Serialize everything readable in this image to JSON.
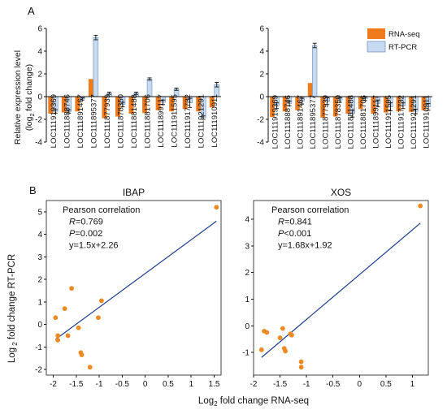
{
  "panel_labels": {
    "a": "A",
    "b": "B"
  },
  "colors": {
    "rna": "#f07b1c",
    "rtpcr": "#c6daf2",
    "rtpcr_edge": "#6e8cb0",
    "fit": "#1e3f8a",
    "point": "#ee8a23"
  },
  "legend": {
    "rna": "RNA-seq",
    "rtpcr": "RT-PCR"
  },
  "bar_ylabel_line1": "Relative expression level",
  "bar_ylabel_line2": "(log",
  "bar_ylabel_sub": "2",
  "bar_ylabel_line2_end": " fold change)",
  "scatter_ylabel_main": "Log",
  "scatter_ylabel_sub": " 2",
  "scatter_ylabel_end": " fold change RT-PCR",
  "scatter_xlabel_main": "Log",
  "scatter_xlabel_sub": "2",
  "scatter_xlabel_end": " fold change RNA-seq",
  "chart_data": [
    {
      "type": "bar",
      "ylim": [
        -4,
        6
      ],
      "yticks": [
        6,
        4,
        2,
        0,
        -2,
        -4
      ],
      "categories": [
        "LOC111919369",
        "LOC111888746",
        "LOC111891467",
        "LOC111895377",
        "LOC111877939",
        "LOC111878350",
        "LOC111881488",
        "LOC111881706",
        "LOC111899117",
        "LOC111911595",
        "LOC111917732",
        "LOC111921291",
        "LOC111910911"
      ],
      "series": [
        {
          "name": "RNA-seq",
          "values": [
            -1.5,
            -1.4,
            -1.3,
            1.55,
            -1.9,
            -1.75,
            -1.5,
            -1.45,
            -1.2,
            -1.3,
            -1.1,
            -1.3,
            -0.95
          ]
        },
        {
          "name": "RT-PCR",
          "values": [
            -1.3,
            -1.3,
            -0.2,
            5.2,
            0.3,
            -0.7,
            0.3,
            1.55,
            -0.5,
            0.65,
            -0.55,
            -1.85,
            1.05
          ]
        }
      ],
      "errors": {
        "RT-PCR": [
          0.15,
          0.15,
          0.1,
          0.2,
          0.1,
          0.2,
          0.1,
          0.1,
          0.2,
          0.1,
          0.4,
          0.15,
          0.2
        ]
      }
    },
    {
      "type": "bar",
      "ylim": [
        -4,
        6
      ],
      "yticks": [
        6,
        4,
        2,
        0,
        -2,
        -4
      ],
      "categories": [
        "LOC111919369",
        "LOC111888746",
        "LOC111891467",
        "LOC111895377",
        "LOC111877939",
        "LOC111878350",
        "LOC111881488",
        "LOC111881706",
        "LOC111899117",
        "LOC111911595",
        "LOC111917732",
        "LOC111921291",
        "LOC111910911"
      ],
      "series": [
        {
          "name": "RNA-seq",
          "values": [
            -1.8,
            -1.3,
            -1.2,
            1.2,
            -1.85,
            -1.75,
            -1.5,
            -1.1,
            -1.5,
            -1.4,
            -1.3,
            -1.35,
            -1.2
          ]
        },
        {
          "name": "RT-PCR",
          "values": [
            -0.8,
            -0.6,
            -0.4,
            4.5,
            -0.4,
            -0.3,
            -1.5,
            -0.2,
            -0.6,
            -0.9,
            -0.8,
            -1.3,
            -0.9
          ]
        }
      ],
      "errors": {
        "RT-PCR": [
          0.25,
          0.2,
          0.25,
          0.2,
          0.3,
          0.2,
          0.3,
          0.15,
          0.3,
          0.35,
          0.25,
          0.2,
          0.3
        ]
      }
    },
    {
      "type": "scatter",
      "title": "IBAP",
      "annotations": [
        "Pearson correlation",
        "R=0.769",
        "P=0.002",
        "y=1.5x+2.26"
      ],
      "xlim": [
        -2.15,
        1.65
      ],
      "ylim": [
        -2.25,
        5.5
      ],
      "xticks": [
        -2,
        -1.5,
        -1,
        -0.5,
        0,
        0.5,
        1,
        1.5
      ],
      "yticks": [
        -2,
        -1,
        0,
        1,
        2,
        3,
        4,
        5
      ],
      "points": [
        [
          -1.95,
          0.3
        ],
        [
          -1.9,
          -0.5
        ],
        [
          -1.9,
          -0.7
        ],
        [
          -1.75,
          0.7
        ],
        [
          -1.68,
          -0.5
        ],
        [
          -1.6,
          1.6
        ],
        [
          -1.45,
          -0.15
        ],
        [
          -1.4,
          -1.25
        ],
        [
          -1.38,
          -1.35
        ],
        [
          -1.2,
          -1.9
        ],
        [
          -1.02,
          0.3
        ],
        [
          -0.95,
          1.05
        ],
        [
          1.55,
          5.2
        ]
      ],
      "fit": {
        "slope": 1.5,
        "intercept": 2.26,
        "x_range": [
          -1.95,
          1.55
        ]
      }
    },
    {
      "type": "scatter",
      "title": "XOS",
      "annotations": [
        "Pearson correlation",
        "R=0.841",
        "P<0.001",
        "y=1.68x+1.92"
      ],
      "xlim": [
        -2.0,
        1.3
      ],
      "ylim": [
        -1.85,
        4.7
      ],
      "xticks": [
        -2,
        -1.5,
        -1,
        -0.5,
        0,
        0.5,
        1
      ],
      "yticks": [
        -1,
        0,
        1,
        2,
        3,
        4
      ],
      "points": [
        [
          -1.85,
          -0.9
        ],
        [
          -1.8,
          -0.2
        ],
        [
          -1.75,
          -0.25
        ],
        [
          -1.5,
          -0.45
        ],
        [
          -1.45,
          -0.1
        ],
        [
          -1.42,
          -0.85
        ],
        [
          -1.4,
          -0.95
        ],
        [
          -1.3,
          -0.3
        ],
        [
          -1.28,
          -0.35
        ],
        [
          -1.1,
          -1.35
        ],
        [
          -1.1,
          -1.55
        ],
        [
          1.15,
          4.5
        ]
      ],
      "fit": {
        "slope": 1.68,
        "intercept": 1.92,
        "x_range": [
          -1.85,
          1.15
        ]
      }
    }
  ]
}
